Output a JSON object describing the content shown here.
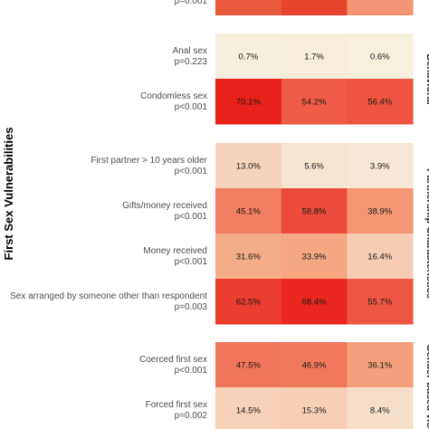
{
  "chart_data": {
    "type": "heatmap",
    "y_axis_title": "First Sex Vulnerabilities",
    "columns": 3,
    "color_scale": {
      "low": "#f7f3e3",
      "high": "#e8311a"
    },
    "top_clipped_row": {
      "label": "p=0.001"
    },
    "groups": [
      {
        "name": "Behavioral",
        "rows": [
          {
            "label": "Anal sex",
            "p": "p=0.223",
            "values": [
              0.7,
              1.7,
              0.6
            ],
            "cells": [
              "0.7%",
              "1.7%",
              "0.6%"
            ]
          },
          {
            "label": "Condomless sex",
            "p": "p<0.001",
            "values": [
              70.1,
              54.2,
              56.4
            ],
            "cells": [
              "70.1%",
              "54.2%",
              "56.4%"
            ]
          }
        ]
      },
      {
        "name": "Partnership Characteristics",
        "rows": [
          {
            "label": "First partner > 10 years older",
            "p": "p<0.001",
            "values": [
              13.0,
              5.6,
              3.9
            ],
            "cells": [
              "13.0%",
              "5.6%",
              "3.9%"
            ]
          },
          {
            "label": "Gifts/money received",
            "p": "p<0.001",
            "values": [
              45.1,
              58.8,
              38.9
            ],
            "cells": [
              "45.1%",
              "58.8%",
              "38.9%"
            ]
          },
          {
            "label": "Money received",
            "p": "p<0.001",
            "values": [
              31.6,
              33.9,
              16.4
            ],
            "cells": [
              "31.6%",
              "33.9%",
              "16.4%"
            ]
          },
          {
            "label": "Sex arranged by someone other than respondent",
            "p": "p=0.003",
            "values": [
              62.5,
              68.4,
              55.7
            ],
            "cells": [
              "62.5%",
              "68.4%",
              "55.7%"
            ]
          }
        ]
      },
      {
        "name": "Gender-based viol",
        "rows": [
          {
            "label": "Coerced first sex",
            "p": "p<0.001",
            "values": [
              47.5,
              46.9,
              36.1
            ],
            "cells": [
              "47.5%",
              "46.9%",
              "36.1%"
            ]
          },
          {
            "label": "Forced first sex",
            "p": "p=0.002",
            "values": [
              14.5,
              15.3,
              8.4
            ],
            "cells": [
              "14.5%",
              "15.3%",
              "8.4%"
            ]
          }
        ]
      }
    ]
  }
}
